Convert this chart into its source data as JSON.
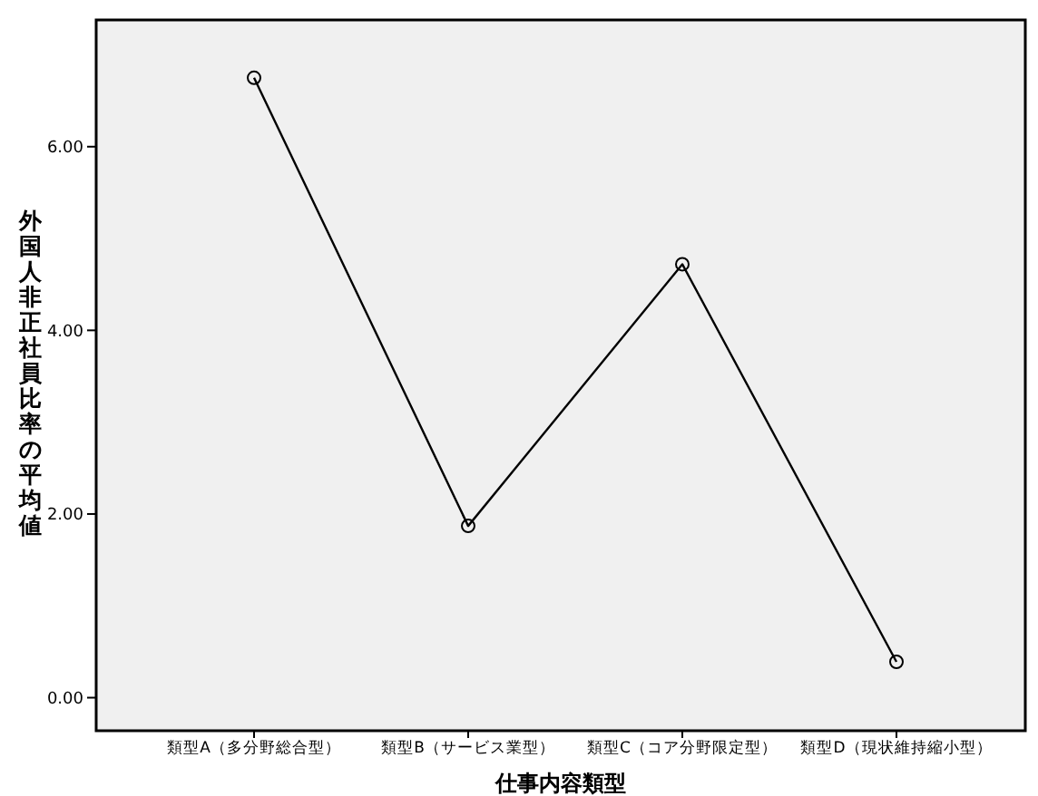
{
  "chart_data": {
    "type": "line",
    "xlabel": "仕事内容類型",
    "ylabel": "外国人非正社員比率の平均値",
    "categories": [
      "類型A（多分野総合型）",
      "類型B（サービス業型）",
      "類型C（コア分野限定型）",
      "類型D（現状維持縮小型）"
    ],
    "series": [
      {
        "color": "#000000",
        "values": [
          6.75,
          1.87,
          4.72,
          0.39
        ]
      }
    ],
    "ylim": [
      -0.36,
      7.38
    ],
    "yticks": [
      {
        "value": 0,
        "label": "0.00"
      },
      {
        "value": 2,
        "label": "2.00"
      },
      {
        "value": 4,
        "label": "4.00"
      },
      {
        "value": 6,
        "label": "6.00"
      }
    ],
    "marker": "circle"
  }
}
